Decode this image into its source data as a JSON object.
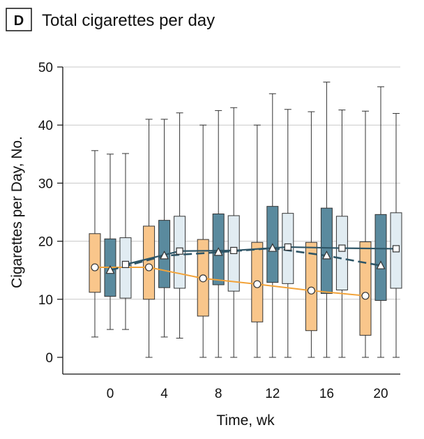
{
  "panel": {
    "letter": "D",
    "title": "Total cigarettes per day"
  },
  "colors": {
    "orange": "#F9C68B",
    "dark_blue": "#5A8A9E",
    "light_blue": "#E1ECF2",
    "line_orange": "#F2A33A",
    "line_dark": "#2E5566",
    "grid": "#C8C8C8"
  },
  "chart_data": {
    "type": "box",
    "xlabel": "Time, wk",
    "ylabel": "Cigarettes per Day, No.",
    "ylim": [
      0,
      50
    ],
    "yticks": [
      0,
      10,
      20,
      30,
      40,
      50
    ],
    "xticks": [
      0,
      4,
      8,
      12,
      16,
      20
    ],
    "grid": "horizontal",
    "series": [
      {
        "color": "orange",
        "marker": "circle",
        "line": "solid",
        "boxes": [
          {
            "week": 0,
            "min": 3.5,
            "q1": 11.2,
            "median": 15.5,
            "q3": 21.3,
            "max": 35.6
          },
          {
            "week": 4,
            "min": 0,
            "q1": 10.0,
            "median": 15.5,
            "q3": 22.6,
            "max": 41.0
          },
          {
            "week": 8,
            "min": 0,
            "q1": 7.1,
            "median": 13.6,
            "q3": 20.3,
            "max": 40.0
          },
          {
            "week": 12,
            "min": 0,
            "q1": 6.1,
            "median": 12.6,
            "q3": 19.8,
            "max": 40.0
          },
          {
            "week": 16,
            "min": 0,
            "q1": 4.6,
            "median": 11.5,
            "q3": 19.8,
            "max": 42.3
          },
          {
            "week": 20,
            "min": 0,
            "q1": 3.8,
            "median": 10.6,
            "q3": 19.9,
            "max": 42.4
          }
        ]
      },
      {
        "color": "dark_blue",
        "marker": "triangle",
        "line": "dashed",
        "boxes": [
          {
            "week": 0,
            "min": 4.8,
            "q1": 10.5,
            "median": 15.0,
            "q3": 20.4,
            "max": 35.0
          },
          {
            "week": 4,
            "min": 3.5,
            "q1": 12.0,
            "median": 17.5,
            "q3": 23.6,
            "max": 41.0
          },
          {
            "week": 8,
            "min": 0,
            "q1": 12.5,
            "median": 18.1,
            "q3": 24.7,
            "max": 42.5
          },
          {
            "week": 12,
            "min": 0,
            "q1": 12.9,
            "median": 18.8,
            "q3": 26.0,
            "max": 45.4
          },
          {
            "week": 16,
            "min": 0,
            "q1": 11.0,
            "median": 17.5,
            "q3": 25.7,
            "max": 47.4
          },
          {
            "week": 20,
            "min": 0,
            "q1": 9.8,
            "median": 15.8,
            "q3": 24.6,
            "max": 46.6
          }
        ]
      },
      {
        "color": "light_blue",
        "marker": "square",
        "line": "solid",
        "boxes": [
          {
            "week": 0,
            "min": 4.8,
            "q1": 10.2,
            "median": 16.0,
            "q3": 20.6,
            "max": 35.1
          },
          {
            "week": 4,
            "min": 3.3,
            "q1": 11.9,
            "median": 18.3,
            "q3": 24.3,
            "max": 42.1
          },
          {
            "week": 8,
            "min": 0,
            "q1": 11.4,
            "median": 18.4,
            "q3": 24.4,
            "max": 43.0
          },
          {
            "week": 12,
            "min": 0,
            "q1": 12.7,
            "median": 19.0,
            "q3": 24.8,
            "max": 42.7
          },
          {
            "week": 16,
            "min": 0,
            "q1": 11.6,
            "median": 18.8,
            "q3": 24.3,
            "max": 42.6
          },
          {
            "week": 20,
            "min": 0,
            "q1": 11.9,
            "median": 18.7,
            "q3": 24.9,
            "max": 42.0
          }
        ]
      }
    ]
  }
}
